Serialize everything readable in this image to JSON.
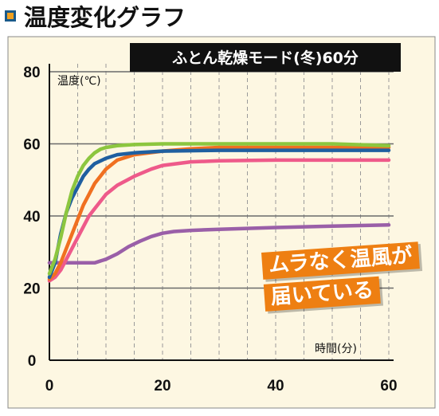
{
  "header": {
    "title": "温度変化グラフ"
  },
  "chart_data": {
    "type": "line",
    "title": "ふとん乾燥モード(冬)60分",
    "ylabel": "温度(℃)",
    "xlabel": "時間(分)",
    "xlim": [
      0,
      60
    ],
    "ylim": [
      0,
      80
    ],
    "x_ticks": [
      "0",
      "20",
      "40",
      "60"
    ],
    "y_ticks": [
      "0",
      "20",
      "40",
      "60",
      "80"
    ],
    "grid": true,
    "colors": {
      "green": "#8cc63f",
      "blue": "#1f5fa0",
      "orange": "#f07020",
      "pink": "#ee5a8a",
      "purple": "#9a5fa8",
      "banner": "#111111",
      "plot_bg": "#fdf7e2",
      "callout": "#ee7f12"
    },
    "series": [
      {
        "color": "#8cc63f",
        "x": [
          0,
          1,
          2,
          3,
          4,
          5,
          6,
          7,
          8,
          9,
          10,
          12,
          15,
          20,
          30,
          40,
          50,
          60
        ],
        "y": [
          24,
          28,
          34,
          41,
          47,
          51,
          54,
          56,
          57.5,
          58.5,
          59,
          59.5,
          59.8,
          60,
          60,
          60,
          60,
          59.5
        ]
      },
      {
        "color": "#1f5fa0",
        "x": [
          0,
          1,
          2,
          3,
          4,
          5,
          6,
          7,
          8,
          10,
          12,
          15,
          20,
          30,
          40,
          50,
          60
        ],
        "y": [
          23,
          27,
          35,
          41,
          45,
          48,
          51,
          53,
          54.5,
          56,
          57,
          57.5,
          58,
          58.2,
          58.2,
          58.2,
          58.2
        ]
      },
      {
        "color": "#f07020",
        "x": [
          0,
          1,
          2,
          3,
          4,
          5,
          6,
          7,
          8,
          9,
          10,
          12,
          15,
          20,
          25,
          30,
          40,
          50,
          60
        ],
        "y": [
          22.5,
          24,
          27,
          31,
          35,
          39,
          43,
          46,
          49,
          51,
          53,
          55.5,
          57,
          58,
          58.6,
          59,
          59,
          59,
          59
        ]
      },
      {
        "color": "#ee5a8a",
        "x": [
          0,
          1,
          2,
          3,
          4,
          5,
          6,
          7,
          8,
          9,
          10,
          12,
          15,
          18,
          20,
          25,
          30,
          40,
          50,
          60
        ],
        "y": [
          22,
          23,
          25,
          28,
          31,
          34,
          37,
          40,
          42,
          44,
          46,
          48.5,
          51,
          53,
          54,
          55,
          55.3,
          55.5,
          55.5,
          55.5
        ]
      },
      {
        "color": "#9a5fa8",
        "x": [
          0,
          2,
          5,
          8,
          10,
          12,
          14,
          16,
          18,
          20,
          22,
          25,
          30,
          40,
          50,
          60
        ],
        "y": [
          27,
          27,
          27,
          27,
          28,
          29.5,
          31.5,
          33,
          34.3,
          35.2,
          35.7,
          36,
          36.3,
          36.8,
          37.2,
          37.5
        ]
      }
    ],
    "annotation": {
      "line1": "ムラなく温風が",
      "line2": "届いている"
    }
  }
}
